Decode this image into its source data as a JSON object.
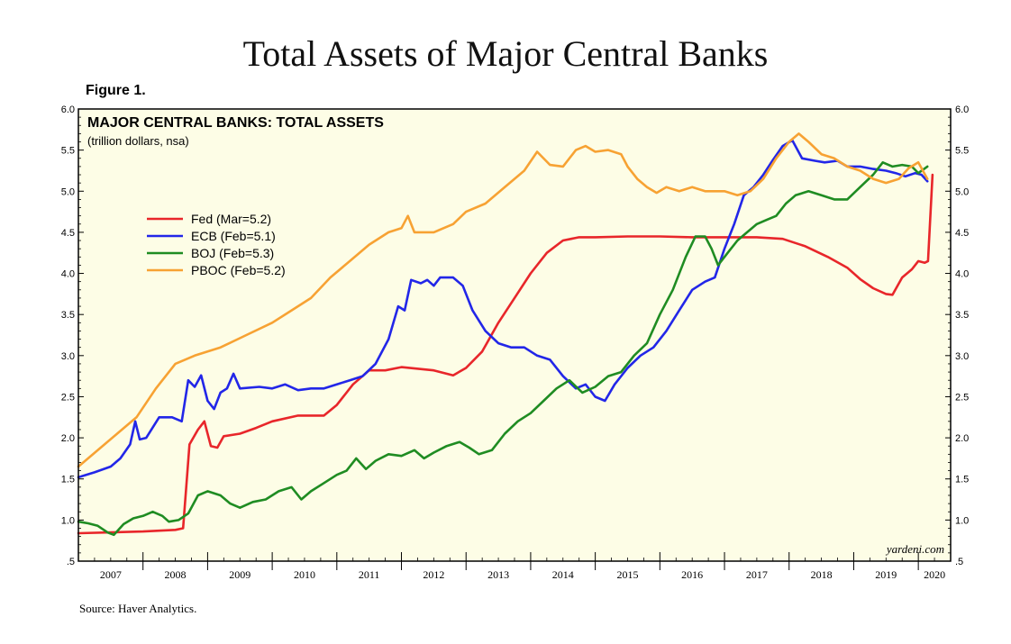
{
  "title": "Total Assets of Major Central Banks",
  "figure_label": "Figure 1.",
  "source": "Source: Haver Analytics.",
  "chart_data": {
    "type": "line",
    "title": "MAJOR CENTRAL BANKS: TOTAL ASSETS",
    "subtitle": "(trillion dollars, nsa)",
    "watermark": "yardeni.com",
    "xlabel": "",
    "ylabel": "",
    "xlim": [
      2007.0,
      2020.5
    ],
    "ylim": [
      0.5,
      6.0
    ],
    "y_ticks": [
      0.5,
      1.0,
      1.5,
      2.0,
      2.5,
      3.0,
      3.5,
      4.0,
      4.5,
      5.0,
      5.5,
      6.0
    ],
    "y_tick_labels": [
      ".5",
      "1.0",
      "1.5",
      "2.0",
      "2.5",
      "3.0",
      "3.5",
      "4.0",
      "4.5",
      "5.0",
      "5.5",
      "6.0"
    ],
    "x_tick_labels": [
      "2007",
      "2008",
      "2009",
      "2010",
      "2011",
      "2012",
      "2013",
      "2014",
      "2015",
      "2016",
      "2017",
      "2018",
      "2019",
      "2020"
    ],
    "grid": false,
    "legend_position": "upper-left",
    "background": "#fdfde6",
    "series": [
      {
        "name": "Fed (Mar=5.2)",
        "color": "#e8262a",
        "points": [
          [
            2007.0,
            0.84
          ],
          [
            2007.5,
            0.85
          ],
          [
            2008.0,
            0.86
          ],
          [
            2008.5,
            0.88
          ],
          [
            2008.62,
            0.9
          ],
          [
            2008.72,
            1.92
          ],
          [
            2008.85,
            2.1
          ],
          [
            2008.95,
            2.2
          ],
          [
            2009.05,
            1.9
          ],
          [
            2009.15,
            1.88
          ],
          [
            2009.25,
            2.02
          ],
          [
            2009.5,
            2.05
          ],
          [
            2009.75,
            2.12
          ],
          [
            2010.0,
            2.2
          ],
          [
            2010.4,
            2.27
          ],
          [
            2010.8,
            2.27
          ],
          [
            2011.0,
            2.4
          ],
          [
            2011.25,
            2.65
          ],
          [
            2011.5,
            2.82
          ],
          [
            2011.75,
            2.82
          ],
          [
            2012.0,
            2.86
          ],
          [
            2012.5,
            2.82
          ],
          [
            2012.8,
            2.76
          ],
          [
            2013.0,
            2.85
          ],
          [
            2013.25,
            3.05
          ],
          [
            2013.5,
            3.4
          ],
          [
            2013.75,
            3.7
          ],
          [
            2014.0,
            4.0
          ],
          [
            2014.25,
            4.25
          ],
          [
            2014.5,
            4.4
          ],
          [
            2014.75,
            4.44
          ],
          [
            2015.0,
            4.44
          ],
          [
            2015.5,
            4.45
          ],
          [
            2016.0,
            4.45
          ],
          [
            2016.5,
            4.44
          ],
          [
            2017.0,
            4.44
          ],
          [
            2017.5,
            4.44
          ],
          [
            2017.9,
            4.42
          ],
          [
            2018.25,
            4.33
          ],
          [
            2018.6,
            4.2
          ],
          [
            2018.9,
            4.07
          ],
          [
            2019.1,
            3.93
          ],
          [
            2019.3,
            3.82
          ],
          [
            2019.5,
            3.75
          ],
          [
            2019.6,
            3.74
          ],
          [
            2019.75,
            3.95
          ],
          [
            2019.9,
            4.05
          ],
          [
            2020.0,
            4.15
          ],
          [
            2020.1,
            4.13
          ],
          [
            2020.15,
            4.15
          ],
          [
            2020.22,
            5.2
          ]
        ]
      },
      {
        "name": "ECB (Feb=5.1)",
        "color": "#2226e8",
        "points": [
          [
            2007.0,
            1.52
          ],
          [
            2007.25,
            1.58
          ],
          [
            2007.5,
            1.65
          ],
          [
            2007.65,
            1.75
          ],
          [
            2007.8,
            1.92
          ],
          [
            2007.88,
            2.2
          ],
          [
            2007.95,
            1.98
          ],
          [
            2008.05,
            2.0
          ],
          [
            2008.25,
            2.25
          ],
          [
            2008.45,
            2.25
          ],
          [
            2008.6,
            2.2
          ],
          [
            2008.7,
            2.7
          ],
          [
            2008.8,
            2.62
          ],
          [
            2008.9,
            2.76
          ],
          [
            2009.0,
            2.45
          ],
          [
            2009.1,
            2.35
          ],
          [
            2009.2,
            2.55
          ],
          [
            2009.3,
            2.6
          ],
          [
            2009.4,
            2.78
          ],
          [
            2009.5,
            2.6
          ],
          [
            2009.8,
            2.62
          ],
          [
            2010.0,
            2.6
          ],
          [
            2010.2,
            2.65
          ],
          [
            2010.4,
            2.58
          ],
          [
            2010.6,
            2.6
          ],
          [
            2010.8,
            2.6
          ],
          [
            2011.0,
            2.65
          ],
          [
            2011.2,
            2.7
          ],
          [
            2011.4,
            2.75
          ],
          [
            2011.6,
            2.9
          ],
          [
            2011.8,
            3.2
          ],
          [
            2011.95,
            3.6
          ],
          [
            2012.05,
            3.55
          ],
          [
            2012.15,
            3.92
          ],
          [
            2012.3,
            3.88
          ],
          [
            2012.4,
            3.92
          ],
          [
            2012.5,
            3.85
          ],
          [
            2012.6,
            3.95
          ],
          [
            2012.8,
            3.95
          ],
          [
            2012.95,
            3.85
          ],
          [
            2013.1,
            3.55
          ],
          [
            2013.3,
            3.3
          ],
          [
            2013.5,
            3.15
          ],
          [
            2013.7,
            3.1
          ],
          [
            2013.9,
            3.1
          ],
          [
            2014.1,
            3.0
          ],
          [
            2014.3,
            2.95
          ],
          [
            2014.5,
            2.75
          ],
          [
            2014.7,
            2.6
          ],
          [
            2014.85,
            2.65
          ],
          [
            2015.0,
            2.5
          ],
          [
            2015.15,
            2.45
          ],
          [
            2015.3,
            2.65
          ],
          [
            2015.5,
            2.85
          ],
          [
            2015.7,
            3.0
          ],
          [
            2015.9,
            3.1
          ],
          [
            2016.1,
            3.3
          ],
          [
            2016.3,
            3.55
          ],
          [
            2016.5,
            3.8
          ],
          [
            2016.7,
            3.9
          ],
          [
            2016.85,
            3.95
          ],
          [
            2017.0,
            4.3
          ],
          [
            2017.15,
            4.6
          ],
          [
            2017.3,
            4.95
          ],
          [
            2017.45,
            5.05
          ],
          [
            2017.6,
            5.2
          ],
          [
            2017.75,
            5.38
          ],
          [
            2017.9,
            5.55
          ],
          [
            2018.05,
            5.62
          ],
          [
            2018.2,
            5.4
          ],
          [
            2018.4,
            5.37
          ],
          [
            2018.55,
            5.35
          ],
          [
            2018.75,
            5.37
          ],
          [
            2018.9,
            5.3
          ],
          [
            2019.1,
            5.3
          ],
          [
            2019.3,
            5.27
          ],
          [
            2019.5,
            5.25
          ],
          [
            2019.65,
            5.22
          ],
          [
            2019.8,
            5.18
          ],
          [
            2019.95,
            5.22
          ],
          [
            2020.05,
            5.2
          ],
          [
            2020.14,
            5.12
          ]
        ]
      },
      {
        "name": "BOJ (Feb=5.3)",
        "color": "#1f8c22",
        "points": [
          [
            2007.0,
            0.98
          ],
          [
            2007.15,
            0.96
          ],
          [
            2007.3,
            0.93
          ],
          [
            2007.45,
            0.85
          ],
          [
            2007.55,
            0.82
          ],
          [
            2007.7,
            0.95
          ],
          [
            2007.85,
            1.02
          ],
          [
            2008.0,
            1.05
          ],
          [
            2008.15,
            1.1
          ],
          [
            2008.3,
            1.05
          ],
          [
            2008.4,
            0.98
          ],
          [
            2008.55,
            1.0
          ],
          [
            2008.7,
            1.08
          ],
          [
            2008.85,
            1.3
          ],
          [
            2009.0,
            1.35
          ],
          [
            2009.2,
            1.3
          ],
          [
            2009.35,
            1.2
          ],
          [
            2009.5,
            1.15
          ],
          [
            2009.7,
            1.22
          ],
          [
            2009.9,
            1.25
          ],
          [
            2010.1,
            1.35
          ],
          [
            2010.3,
            1.4
          ],
          [
            2010.45,
            1.25
          ],
          [
            2010.6,
            1.35
          ],
          [
            2010.8,
            1.45
          ],
          [
            2011.0,
            1.55
          ],
          [
            2011.15,
            1.6
          ],
          [
            2011.3,
            1.75
          ],
          [
            2011.45,
            1.62
          ],
          [
            2011.6,
            1.72
          ],
          [
            2011.8,
            1.8
          ],
          [
            2012.0,
            1.78
          ],
          [
            2012.2,
            1.85
          ],
          [
            2012.35,
            1.75
          ],
          [
            2012.5,
            1.82
          ],
          [
            2012.7,
            1.9
          ],
          [
            2012.9,
            1.95
          ],
          [
            2013.05,
            1.88
          ],
          [
            2013.2,
            1.8
          ],
          [
            2013.4,
            1.85
          ],
          [
            2013.6,
            2.05
          ],
          [
            2013.8,
            2.2
          ],
          [
            2014.0,
            2.3
          ],
          [
            2014.2,
            2.45
          ],
          [
            2014.4,
            2.6
          ],
          [
            2014.6,
            2.7
          ],
          [
            2014.8,
            2.55
          ],
          [
            2015.0,
            2.62
          ],
          [
            2015.2,
            2.75
          ],
          [
            2015.4,
            2.8
          ],
          [
            2015.6,
            3.0
          ],
          [
            2015.8,
            3.15
          ],
          [
            2016.0,
            3.5
          ],
          [
            2016.2,
            3.8
          ],
          [
            2016.4,
            4.2
          ],
          [
            2016.55,
            4.45
          ],
          [
            2016.7,
            4.45
          ],
          [
            2016.8,
            4.3
          ],
          [
            2016.9,
            4.1
          ],
          [
            2017.05,
            4.25
          ],
          [
            2017.2,
            4.4
          ],
          [
            2017.35,
            4.5
          ],
          [
            2017.5,
            4.6
          ],
          [
            2017.65,
            4.65
          ],
          [
            2017.8,
            4.7
          ],
          [
            2017.95,
            4.85
          ],
          [
            2018.1,
            4.95
          ],
          [
            2018.3,
            5.0
          ],
          [
            2018.5,
            4.95
          ],
          [
            2018.7,
            4.9
          ],
          [
            2018.9,
            4.9
          ],
          [
            2019.1,
            5.05
          ],
          [
            2019.3,
            5.2
          ],
          [
            2019.45,
            5.35
          ],
          [
            2019.6,
            5.3
          ],
          [
            2019.75,
            5.32
          ],
          [
            2019.9,
            5.3
          ],
          [
            2020.0,
            5.22
          ],
          [
            2020.14,
            5.3
          ]
        ]
      },
      {
        "name": "PBOC (Feb=5.2)",
        "color": "#f7a233",
        "points": [
          [
            2007.0,
            1.65
          ],
          [
            2007.3,
            1.85
          ],
          [
            2007.6,
            2.05
          ],
          [
            2007.9,
            2.25
          ],
          [
            2008.2,
            2.6
          ],
          [
            2008.5,
            2.9
          ],
          [
            2008.8,
            3.0
          ],
          [
            2009.2,
            3.1
          ],
          [
            2009.6,
            3.25
          ],
          [
            2010.0,
            3.4
          ],
          [
            2010.3,
            3.55
          ],
          [
            2010.6,
            3.7
          ],
          [
            2010.9,
            3.95
          ],
          [
            2011.2,
            4.15
          ],
          [
            2011.5,
            4.35
          ],
          [
            2011.8,
            4.5
          ],
          [
            2012.0,
            4.55
          ],
          [
            2012.1,
            4.7
          ],
          [
            2012.2,
            4.5
          ],
          [
            2012.5,
            4.5
          ],
          [
            2012.8,
            4.6
          ],
          [
            2013.0,
            4.75
          ],
          [
            2013.3,
            4.85
          ],
          [
            2013.6,
            5.05
          ],
          [
            2013.9,
            5.25
          ],
          [
            2014.1,
            5.48
          ],
          [
            2014.3,
            5.32
          ],
          [
            2014.5,
            5.3
          ],
          [
            2014.7,
            5.5
          ],
          [
            2014.85,
            5.55
          ],
          [
            2015.0,
            5.48
          ],
          [
            2015.2,
            5.5
          ],
          [
            2015.4,
            5.45
          ],
          [
            2015.5,
            5.3
          ],
          [
            2015.65,
            5.15
          ],
          [
            2015.8,
            5.05
          ],
          [
            2015.95,
            4.98
          ],
          [
            2016.1,
            5.05
          ],
          [
            2016.3,
            5.0
          ],
          [
            2016.5,
            5.05
          ],
          [
            2016.7,
            5.0
          ],
          [
            2016.85,
            5.0
          ],
          [
            2017.0,
            5.0
          ],
          [
            2017.2,
            4.95
          ],
          [
            2017.4,
            5.0
          ],
          [
            2017.6,
            5.15
          ],
          [
            2017.8,
            5.4
          ],
          [
            2018.0,
            5.6
          ],
          [
            2018.15,
            5.7
          ],
          [
            2018.3,
            5.6
          ],
          [
            2018.5,
            5.45
          ],
          [
            2018.7,
            5.4
          ],
          [
            2018.9,
            5.3
          ],
          [
            2019.1,
            5.25
          ],
          [
            2019.3,
            5.15
          ],
          [
            2019.5,
            5.1
          ],
          [
            2019.7,
            5.15
          ],
          [
            2019.85,
            5.28
          ],
          [
            2020.0,
            5.35
          ],
          [
            2020.14,
            5.15
          ]
        ]
      }
    ]
  }
}
